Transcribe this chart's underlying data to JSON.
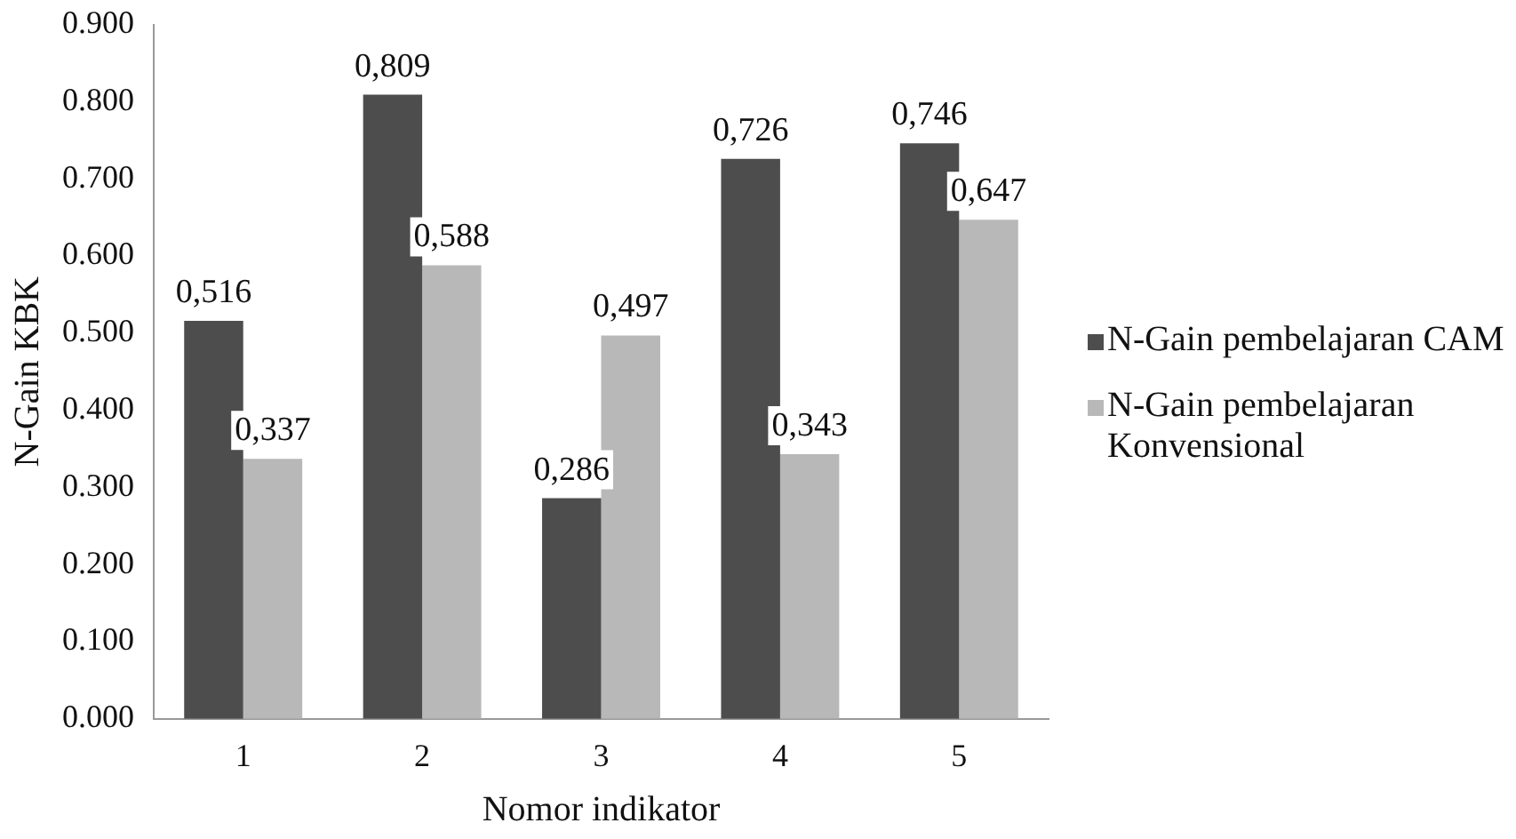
{
  "chart_data": {
    "type": "bar",
    "xlabel": "Nomor indikator",
    "ylabel": "N-Gain KBK",
    "categories": [
      "1",
      "2",
      "3",
      "4",
      "5"
    ],
    "series": [
      {
        "name": "N-Gain pembelajaran CAM",
        "color": "#4d4d4d",
        "values": [
          0.516,
          0.809,
          0.286,
          0.726,
          0.746
        ],
        "value_labels": [
          "0,516",
          "0,809",
          "0,286",
          "0,726",
          "0,746"
        ]
      },
      {
        "name": "N-Gain pembelajaran Konvensional",
        "color": "#b8b8b8",
        "values": [
          0.337,
          0.588,
          0.497,
          0.343,
          0.647
        ],
        "value_labels": [
          "0,337",
          "0,588",
          "0,497",
          "0,343",
          "0,647"
        ]
      }
    ],
    "ylim": [
      0,
      0.9
    ],
    "yticks": [
      {
        "value": 0,
        "label": "0.000"
      },
      {
        "value": 0.1,
        "label": "0.100"
      },
      {
        "value": 0.2,
        "label": "0.200"
      },
      {
        "value": 0.3,
        "label": "0.300"
      },
      {
        "value": 0.4,
        "label": "0.400"
      },
      {
        "value": 0.5,
        "label": "0.500"
      },
      {
        "value": 0.6,
        "label": "0.600"
      },
      {
        "value": 0.7,
        "label": "0.700"
      },
      {
        "value": 0.8,
        "label": "0.800"
      },
      {
        "value": 0.9,
        "label": "0.900"
      }
    ],
    "grid": false,
    "legend": "right"
  }
}
